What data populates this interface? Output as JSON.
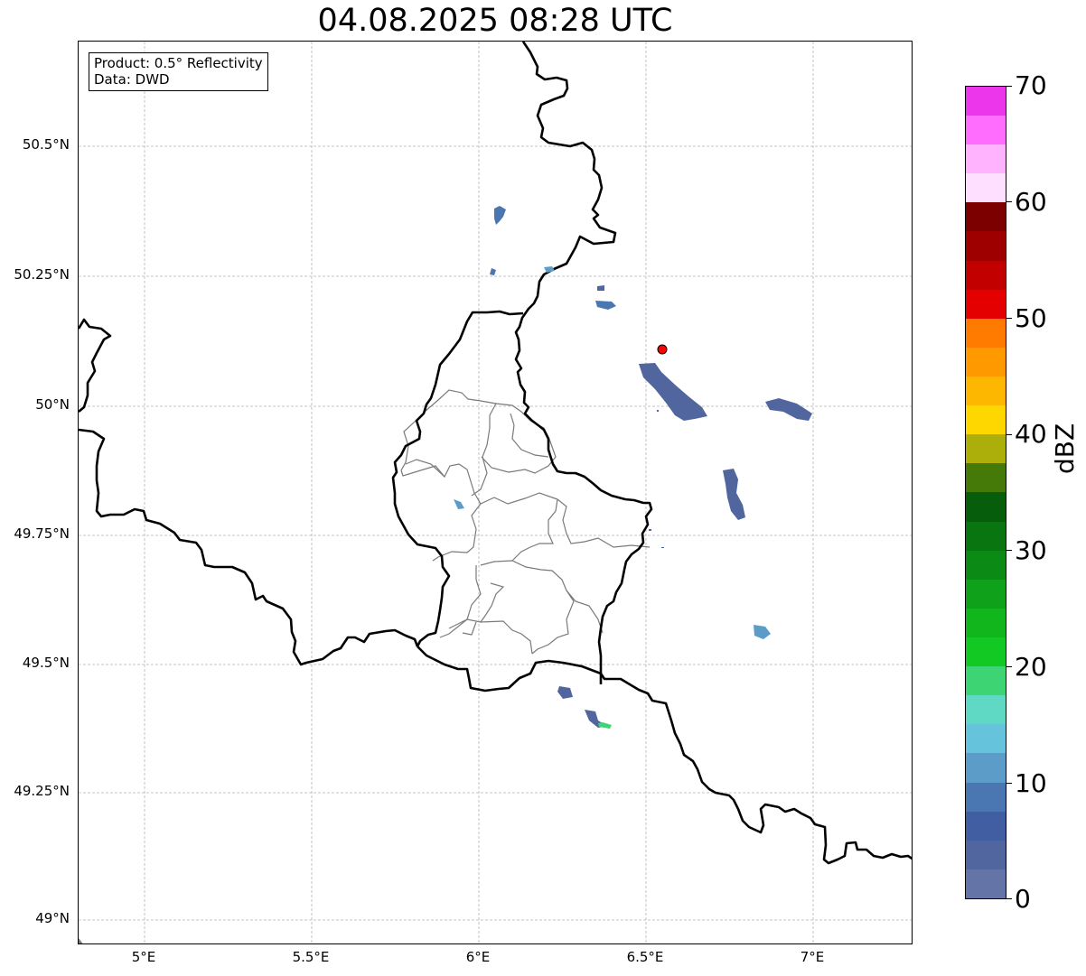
{
  "title": "04.08.2025 08:28 UTC",
  "info": {
    "product": "Product: 0.5° Reflectivity",
    "data_source": "Data: DWD"
  },
  "lat_ticks": [
    "50.5°N",
    "50.25°N",
    "50°N",
    "49.75°N",
    "49.5°N",
    "49.25°N",
    "49°N"
  ],
  "lon_ticks": [
    "5°E",
    "5.5°E",
    "6°E",
    "6.5°E",
    "7°E"
  ],
  "colorbar": {
    "label": "dBZ",
    "ticks": [
      "0",
      "10",
      "20",
      "30",
      "40",
      "50",
      "60",
      "70"
    ],
    "colors": [
      "#6574a7",
      "#51659e",
      "#425ea2",
      "#4a77b1",
      "#5b9dc8",
      "#66c3dc",
      "#5fd8c4",
      "#3dd574",
      "#12c823",
      "#10b61b",
      "#0fa119",
      "#0b8b15",
      "#097511",
      "#065e0c",
      "#457a08",
      "#acae09",
      "#fed700",
      "#feb700",
      "#fe9900",
      "#fe7b00",
      "#e40000",
      "#c20000",
      "#9e0000",
      "#7c0000",
      "#ffdfff",
      "#ffb3ff",
      "#ff6dff",
      "#eb36eb"
    ]
  },
  "radar_site": {
    "name": "radar-site-marker",
    "lon": 6.548,
    "lat": 50.11,
    "color": "#ff0000"
  },
  "map_extent": {
    "lon_min": 4.8,
    "lon_max": 7.3,
    "lat_min": 48.95,
    "lat_max": 50.69
  }
}
